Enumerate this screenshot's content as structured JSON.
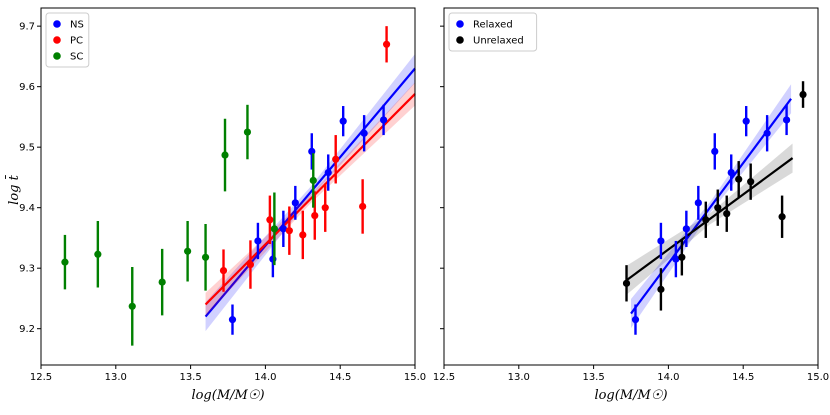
{
  "chart_data": [
    {
      "type": "scatter",
      "panel": "left",
      "xlabel": "log(M/M☉)",
      "ylabel": "log t̄",
      "xlim": [
        12.5,
        15.0
      ],
      "ylim": [
        9.14,
        9.73
      ],
      "xticks": [
        12.5,
        13.0,
        13.5,
        14.0,
        14.5,
        15.0
      ],
      "xtick_labels": [
        "12.5",
        "13.0",
        "13.5",
        "14.0",
        "14.5",
        "15.0"
      ],
      "yticks": [
        9.2,
        9.3,
        9.4,
        9.5,
        9.6,
        9.7
      ],
      "ytick_labels": [
        "9.2",
        "9.3",
        "9.4",
        "9.5",
        "9.6",
        "9.7"
      ],
      "legend_position": "top-left",
      "series": [
        {
          "name": "NS",
          "color": "#0000ff",
          "points": [
            {
              "x": 13.78,
              "y": 9.215,
              "err": 0.025
            },
            {
              "x": 13.95,
              "y": 9.345,
              "err": 0.03
            },
            {
              "x": 14.05,
              "y": 9.315,
              "err": 0.03
            },
            {
              "x": 14.12,
              "y": 9.365,
              "err": 0.03
            },
            {
              "x": 14.2,
              "y": 9.408,
              "err": 0.028
            },
            {
              "x": 14.31,
              "y": 9.493,
              "err": 0.03
            },
            {
              "x": 14.42,
              "y": 9.458,
              "err": 0.03
            },
            {
              "x": 14.52,
              "y": 9.543,
              "err": 0.025
            },
            {
              "x": 14.66,
              "y": 9.523,
              "err": 0.03
            },
            {
              "x": 14.79,
              "y": 9.545,
              "err": 0.025
            }
          ],
          "fit": {
            "x": [
              13.6,
              15.0
            ],
            "y": [
              9.22,
              9.63
            ],
            "band": 0.015
          }
        },
        {
          "name": "PC",
          "color": "#ff0000",
          "points": [
            {
              "x": 13.72,
              "y": 9.296,
              "err": 0.035
            },
            {
              "x": 13.9,
              "y": 9.306,
              "err": 0.04
            },
            {
              "x": 14.03,
              "y": 9.38,
              "err": 0.04
            },
            {
              "x": 14.16,
              "y": 9.362,
              "err": 0.04
            },
            {
              "x": 14.25,
              "y": 9.355,
              "err": 0.04
            },
            {
              "x": 14.33,
              "y": 9.387,
              "err": 0.04
            },
            {
              "x": 14.4,
              "y": 9.4,
              "err": 0.04
            },
            {
              "x": 14.47,
              "y": 9.48,
              "err": 0.04
            },
            {
              "x": 14.65,
              "y": 9.402,
              "err": 0.045
            },
            {
              "x": 14.81,
              "y": 9.67,
              "err": 0.03
            }
          ],
          "fit": {
            "x": [
              13.6,
              15.0
            ],
            "y": [
              9.24,
              9.588
            ],
            "band": 0.012
          }
        },
        {
          "name": "SC",
          "color": "#008000",
          "points": [
            {
              "x": 12.66,
              "y": 9.31,
              "err": 0.045
            },
            {
              "x": 12.88,
              "y": 9.323,
              "err": 0.055
            },
            {
              "x": 13.11,
              "y": 9.237,
              "err": 0.065
            },
            {
              "x": 13.31,
              "y": 9.277,
              "err": 0.055
            },
            {
              "x": 13.48,
              "y": 9.328,
              "err": 0.05
            },
            {
              "x": 13.6,
              "y": 9.318,
              "err": 0.055
            },
            {
              "x": 13.73,
              "y": 9.487,
              "err": 0.06
            },
            {
              "x": 13.88,
              "y": 9.525,
              "err": 0.045
            },
            {
              "x": 14.06,
              "y": 9.365,
              "err": 0.06
            },
            {
              "x": 14.32,
              "y": 9.445,
              "err": 0.045
            }
          ]
        }
      ]
    },
    {
      "type": "scatter",
      "panel": "right",
      "xlabel": "log(M/M☉)",
      "xlim": [
        12.5,
        15.0
      ],
      "ylim": [
        9.14,
        9.73
      ],
      "xticks": [
        12.5,
        13.0,
        13.5,
        14.0,
        14.5,
        15.0
      ],
      "xtick_labels": [
        "12.5",
        "13.0",
        "13.5",
        "14.0",
        "14.5",
        "15.0"
      ],
      "yticks": [
        9.2,
        9.3,
        9.4,
        9.5,
        9.6,
        9.7
      ],
      "legend_position": "top-left",
      "series": [
        {
          "name": "Relaxed",
          "color": "#0000ff",
          "points": [
            {
              "x": 13.78,
              "y": 9.215,
              "err": 0.025
            },
            {
              "x": 13.95,
              "y": 9.345,
              "err": 0.03
            },
            {
              "x": 14.05,
              "y": 9.315,
              "err": 0.03
            },
            {
              "x": 14.12,
              "y": 9.365,
              "err": 0.03
            },
            {
              "x": 14.2,
              "y": 9.408,
              "err": 0.028
            },
            {
              "x": 14.31,
              "y": 9.493,
              "err": 0.03
            },
            {
              "x": 14.42,
              "y": 9.458,
              "err": 0.03
            },
            {
              "x": 14.52,
              "y": 9.543,
              "err": 0.025
            },
            {
              "x": 14.66,
              "y": 9.523,
              "err": 0.03
            },
            {
              "x": 14.79,
              "y": 9.545,
              "err": 0.025
            }
          ],
          "fit": {
            "x": [
              13.75,
              14.82
            ],
            "y": [
              9.225,
              9.58
            ],
            "band": 0.015
          }
        },
        {
          "name": "Unrelaxed",
          "color": "#000000",
          "points": [
            {
              "x": 13.72,
              "y": 9.275,
              "err": 0.03
            },
            {
              "x": 13.95,
              "y": 9.265,
              "err": 0.035
            },
            {
              "x": 14.09,
              "y": 9.318,
              "err": 0.03
            },
            {
              "x": 14.25,
              "y": 9.38,
              "err": 0.03
            },
            {
              "x": 14.33,
              "y": 9.4,
              "err": 0.03
            },
            {
              "x": 14.39,
              "y": 9.39,
              "err": 0.03
            },
            {
              "x": 14.47,
              "y": 9.447,
              "err": 0.03
            },
            {
              "x": 14.55,
              "y": 9.443,
              "err": 0.03
            },
            {
              "x": 14.76,
              "y": 9.385,
              "err": 0.035
            },
            {
              "x": 14.9,
              "y": 9.587,
              "err": 0.022
            }
          ],
          "fit": {
            "x": [
              13.72,
              14.83
            ],
            "y": [
              9.28,
              9.482
            ],
            "band": 0.015
          }
        }
      ]
    }
  ]
}
